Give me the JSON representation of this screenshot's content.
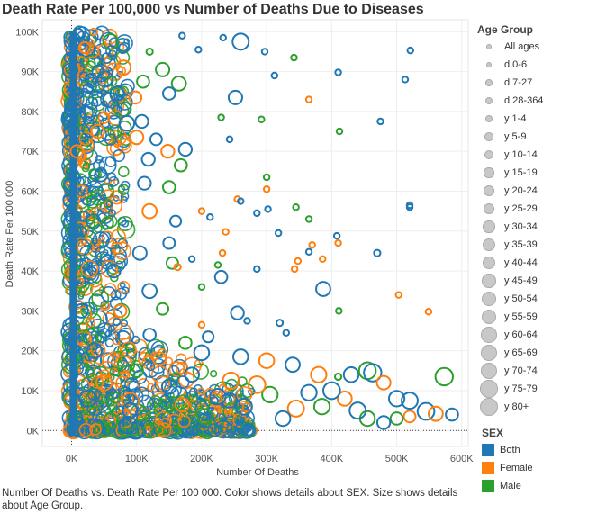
{
  "chart_data": {
    "type": "scatter",
    "title": "Death Rate Per 100,000 vs Number of Deaths Due to Diseases",
    "xlabel": "Number Of Deaths",
    "ylabel": "Death Rate Per 100 000",
    "xlim": [
      -45000,
      610000
    ],
    "ylim": [
      -4000,
      103000
    ],
    "x_ticks": [
      0,
      100000,
      200000,
      300000,
      400000,
      500000,
      600000
    ],
    "x_tick_labels": [
      "0K",
      "100K",
      "200K",
      "300K",
      "400K",
      "500K",
      "600K"
    ],
    "y_ticks": [
      0,
      10000,
      20000,
      30000,
      40000,
      50000,
      60000,
      70000,
      80000,
      90000,
      100000
    ],
    "y_tick_labels": [
      "0K",
      "10K",
      "20K",
      "30K",
      "40K",
      "50K",
      "60K",
      "70K",
      "80K",
      "90K",
      "100K"
    ],
    "grid": true,
    "colors": {
      "Both": "#1f77b4",
      "Female": "#ff7f0e",
      "Male": "#2ca02c"
    },
    "size_legend": {
      "title": "Age Group",
      "entries": [
        "All ages",
        "d 0-6",
        "d 7-27",
        "d 28-364",
        "y 1-4",
        "y 5-9",
        "y 10-14",
        "y 15-19",
        "y 20-24",
        "y 25-29",
        "y 30-34",
        "y 35-39",
        "y 40-44",
        "y 45-49",
        "y 50-54",
        "y 55-59",
        "y 60-64",
        "y 65-69",
        "y 70-74",
        "y 75-79",
        "y 80+"
      ]
    },
    "color_legend": {
      "title": "SEX",
      "entries": [
        "Both",
        "Female",
        "Male"
      ]
    },
    "points": [
      {
        "x": 521000,
        "y": 95300,
        "sex": "Both",
        "age": "d 7-27"
      },
      {
        "x": 513000,
        "y": 88000,
        "sex": "Both",
        "age": "d 7-27"
      },
      {
        "x": 410000,
        "y": 89800,
        "sex": "Both",
        "age": "d 7-27"
      },
      {
        "x": 475000,
        "y": 77500,
        "sex": "Both",
        "age": "d 7-27"
      },
      {
        "x": 342000,
        "y": 93500,
        "sex": "Male",
        "age": "d 7-27"
      },
      {
        "x": 260000,
        "y": 97500,
        "sex": "Both",
        "age": "y 70-74"
      },
      {
        "x": 233000,
        "y": 98500,
        "sex": "Both",
        "age": "d 7-27"
      },
      {
        "x": 297000,
        "y": 95000,
        "sex": "Both",
        "age": "d 7-27"
      },
      {
        "x": 312000,
        "y": 89000,
        "sex": "Both",
        "age": "d 7-27"
      },
      {
        "x": 365000,
        "y": 83000,
        "sex": "Female",
        "age": "d 7-27"
      },
      {
        "x": 412000,
        "y": 75000,
        "sex": "Male",
        "age": "d 7-27"
      },
      {
        "x": 292000,
        "y": 78000,
        "sex": "Male",
        "age": "d 7-27"
      },
      {
        "x": 252000,
        "y": 83500,
        "sex": "Both",
        "age": "y 50-54"
      },
      {
        "x": 165000,
        "y": 87000,
        "sex": "Male",
        "age": "y 55-59"
      },
      {
        "x": 175000,
        "y": 70500,
        "sex": "Both",
        "age": "y 45-49"
      },
      {
        "x": 168000,
        "y": 66500,
        "sex": "Male",
        "age": "y 40-44"
      },
      {
        "x": 140000,
        "y": 90500,
        "sex": "Male",
        "age": "y 50-54"
      },
      {
        "x": 150000,
        "y": 84500,
        "sex": "Both",
        "age": "y 40-44"
      },
      {
        "x": 170000,
        "y": 99000,
        "sex": "Both",
        "age": "d 7-27"
      },
      {
        "x": 195000,
        "y": 95500,
        "sex": "Both",
        "age": "d 7-27"
      },
      {
        "x": 230000,
        "y": 78500,
        "sex": "Male",
        "age": "d 7-27"
      },
      {
        "x": 243000,
        "y": 73000,
        "sex": "Both",
        "age": "d 7-27"
      },
      {
        "x": 520000,
        "y": 56500,
        "sex": "Both",
        "age": "d 7-27"
      },
      {
        "x": 520000,
        "y": 56000,
        "sex": "Both",
        "age": "d 7-27"
      },
      {
        "x": 470000,
        "y": 44500,
        "sex": "Both",
        "age": "d 28-364"
      },
      {
        "x": 503000,
        "y": 34000,
        "sex": "Female",
        "age": "d 7-27"
      },
      {
        "x": 549000,
        "y": 29800,
        "sex": "Female",
        "age": "d 7-27"
      },
      {
        "x": 411000,
        "y": 30000,
        "sex": "Male",
        "age": "d 7-27"
      },
      {
        "x": 387000,
        "y": 35500,
        "sex": "Both",
        "age": "y 55-59"
      },
      {
        "x": 408000,
        "y": 48800,
        "sex": "Both",
        "age": "d 7-27"
      },
      {
        "x": 410000,
        "y": 47000,
        "sex": "Female",
        "age": "d 7-27"
      },
      {
        "x": 386000,
        "y": 43000,
        "sex": "Female",
        "age": "d 7-27"
      },
      {
        "x": 370000,
        "y": 46500,
        "sex": "Female",
        "age": "d 7-27"
      },
      {
        "x": 365000,
        "y": 53000,
        "sex": "Male",
        "age": "d 7-27"
      },
      {
        "x": 345000,
        "y": 56000,
        "sex": "Male",
        "age": "d 7-27"
      },
      {
        "x": 300000,
        "y": 63500,
        "sex": "Male",
        "age": "d 7-27"
      },
      {
        "x": 300000,
        "y": 60500,
        "sex": "Female",
        "age": "d 7-27"
      },
      {
        "x": 255000,
        "y": 58000,
        "sex": "Female",
        "age": "d 7-27"
      },
      {
        "x": 260000,
        "y": 57500,
        "sex": "Both",
        "age": "d 7-27"
      },
      {
        "x": 285000,
        "y": 54500,
        "sex": "Both",
        "age": "d 7-27"
      },
      {
        "x": 302000,
        "y": 55500,
        "sex": "Both",
        "age": "d 7-27"
      },
      {
        "x": 318000,
        "y": 49500,
        "sex": "Both",
        "age": "d 7-27"
      },
      {
        "x": 343000,
        "y": 40500,
        "sex": "Female",
        "age": "d 7-27"
      },
      {
        "x": 348000,
        "y": 42500,
        "sex": "Female",
        "age": "d 7-27"
      },
      {
        "x": 365000,
        "y": 44800,
        "sex": "Both",
        "age": "d 7-27"
      },
      {
        "x": 285000,
        "y": 40500,
        "sex": "Both",
        "age": "d 7-27"
      },
      {
        "x": 237000,
        "y": 49800,
        "sex": "Female",
        "age": "d 7-27"
      },
      {
        "x": 225000,
        "y": 41500,
        "sex": "Male",
        "age": "d 7-27"
      },
      {
        "x": 230000,
        "y": 38500,
        "sex": "Both",
        "age": "y 40-44"
      },
      {
        "x": 232000,
        "y": 44500,
        "sex": "Female",
        "age": "d 7-27"
      },
      {
        "x": 255000,
        "y": 29500,
        "sex": "Both",
        "age": "y 45-49"
      },
      {
        "x": 270000,
        "y": 27500,
        "sex": "Both",
        "age": "d 7-27"
      },
      {
        "x": 320000,
        "y": 27000,
        "sex": "Both",
        "age": "d 28-364"
      },
      {
        "x": 330000,
        "y": 24500,
        "sex": "Both",
        "age": "d 7-27"
      },
      {
        "x": 210000,
        "y": 23500,
        "sex": "Both",
        "age": "y 30-34"
      },
      {
        "x": 200000,
        "y": 26500,
        "sex": "Female",
        "age": "d 7-27"
      },
      {
        "x": 200000,
        "y": 36000,
        "sex": "Male",
        "age": "d 7-27"
      },
      {
        "x": 213000,
        "y": 53500,
        "sex": "Both",
        "age": "d 7-27"
      },
      {
        "x": 200000,
        "y": 55000,
        "sex": "Female",
        "age": "d 7-27"
      },
      {
        "x": 160000,
        "y": 52500,
        "sex": "Both",
        "age": "y 30-34"
      },
      {
        "x": 150000,
        "y": 47000,
        "sex": "Both",
        "age": "y 35-39"
      },
      {
        "x": 155000,
        "y": 42000,
        "sex": "Male",
        "age": "y 35-39"
      },
      {
        "x": 163000,
        "y": 41000,
        "sex": "Female",
        "age": "d 28-364"
      },
      {
        "x": 185000,
        "y": 43000,
        "sex": "Both",
        "age": "d 7-27"
      },
      {
        "x": 150000,
        "y": 61000,
        "sex": "Male",
        "age": "y 40-44"
      },
      {
        "x": 148000,
        "y": 70000,
        "sex": "Female",
        "age": "y 45-49"
      },
      {
        "x": 112000,
        "y": 62000,
        "sex": "Both",
        "age": "y 45-49"
      },
      {
        "x": 118000,
        "y": 68000,
        "sex": "Both",
        "age": "y 45-49"
      },
      {
        "x": 108000,
        "y": 77500,
        "sex": "Both",
        "age": "y 45-49"
      },
      {
        "x": 100000,
        "y": 73500,
        "sex": "Female",
        "age": "y 50-54"
      },
      {
        "x": 98000,
        "y": 83500,
        "sex": "Female",
        "age": "y 40-44"
      },
      {
        "x": 110000,
        "y": 87500,
        "sex": "Male",
        "age": "y 40-44"
      },
      {
        "x": 120000,
        "y": 95000,
        "sex": "Male",
        "age": "d 28-364"
      },
      {
        "x": 60000,
        "y": 97500,
        "sex": "Male",
        "age": "y 60-64"
      },
      {
        "x": 80000,
        "y": 91000,
        "sex": "Female",
        "age": "y 55-59"
      },
      {
        "x": 70000,
        "y": 84500,
        "sex": "Both",
        "age": "y 50-54"
      },
      {
        "x": 85000,
        "y": 77000,
        "sex": "Both",
        "age": "y 60-64"
      },
      {
        "x": 130000,
        "y": 73000,
        "sex": "Both",
        "age": "y 35-39"
      },
      {
        "x": 120000,
        "y": 55000,
        "sex": "Female",
        "age": "y 55-59"
      },
      {
        "x": 105000,
        "y": 44500,
        "sex": "Both",
        "age": "y 50-54"
      },
      {
        "x": 120000,
        "y": 35000,
        "sex": "Both",
        "age": "y 55-59"
      },
      {
        "x": 140000,
        "y": 30500,
        "sex": "Male",
        "age": "y 35-39"
      },
      {
        "x": 175000,
        "y": 22000,
        "sex": "Male",
        "age": "y 40-44"
      },
      {
        "x": 200000,
        "y": 19500,
        "sex": "Both",
        "age": "y 60-64"
      },
      {
        "x": 260000,
        "y": 18500,
        "sex": "Both",
        "age": "y 60-64"
      },
      {
        "x": 300000,
        "y": 17500,
        "sex": "Female",
        "age": "y 60-64"
      },
      {
        "x": 340000,
        "y": 16500,
        "sex": "Both",
        "age": "y 55-59"
      },
      {
        "x": 380000,
        "y": 14000,
        "sex": "Female",
        "age": "y 65-69"
      },
      {
        "x": 410000,
        "y": 13500,
        "sex": "Male",
        "age": "d 28-364"
      },
      {
        "x": 430000,
        "y": 14000,
        "sex": "Both",
        "age": "y 60-64"
      },
      {
        "x": 455000,
        "y": 15000,
        "sex": "Male",
        "age": "y 75-79"
      },
      {
        "x": 463000,
        "y": 14500,
        "sex": "Both",
        "age": "y 80+"
      },
      {
        "x": 480000,
        "y": 12000,
        "sex": "Female",
        "age": "y 50-54"
      },
      {
        "x": 500000,
        "y": 8000,
        "sex": "Both",
        "age": "y 65-69"
      },
      {
        "x": 520000,
        "y": 7500,
        "sex": "Both",
        "age": "y 70-74"
      },
      {
        "x": 545000,
        "y": 4800,
        "sex": "Both",
        "age": "y 75-79"
      },
      {
        "x": 560000,
        "y": 4200,
        "sex": "Female",
        "age": "y 55-59"
      },
      {
        "x": 573000,
        "y": 13500,
        "sex": "Male",
        "age": "y 80+"
      },
      {
        "x": 585000,
        "y": 4000,
        "sex": "Both",
        "age": "y 40-44"
      },
      {
        "x": 520000,
        "y": 3500,
        "sex": "Female",
        "age": "y 35-39"
      },
      {
        "x": 500000,
        "y": 3000,
        "sex": "Male",
        "age": "y 40-44"
      },
      {
        "x": 480000,
        "y": 2000,
        "sex": "Both",
        "age": "y 45-49"
      },
      {
        "x": 455000,
        "y": 3000,
        "sex": "Male",
        "age": "y 60-64"
      },
      {
        "x": 440000,
        "y": 5000,
        "sex": "Both",
        "age": "y 70-74"
      },
      {
        "x": 420000,
        "y": 8000,
        "sex": "Female",
        "age": "y 55-59"
      },
      {
        "x": 400000,
        "y": 10000,
        "sex": "Both",
        "age": "y 75-79"
      },
      {
        "x": 385000,
        "y": 6000,
        "sex": "Male",
        "age": "y 65-69"
      },
      {
        "x": 365000,
        "y": 9500,
        "sex": "Both",
        "age": "y 65-69"
      },
      {
        "x": 345000,
        "y": 5500,
        "sex": "Female",
        "age": "y 70-74"
      },
      {
        "x": 325000,
        "y": 3000,
        "sex": "Both",
        "age": "y 60-64"
      },
      {
        "x": 305000,
        "y": 9000,
        "sex": "Male",
        "age": "y 65-69"
      },
      {
        "x": 285000,
        "y": 11500,
        "sex": "Female",
        "age": "y 75-79"
      },
      {
        "x": 265000,
        "y": 6000,
        "sex": "Both",
        "age": "y 70-74"
      },
      {
        "x": 245000,
        "y": 12500,
        "sex": "Female",
        "age": "y 70-74"
      },
      {
        "x": 225000,
        "y": 8500,
        "sex": "Both",
        "age": "y 65-69"
      },
      {
        "x": 205000,
        "y": 3500,
        "sex": "Male",
        "age": "y 60-64"
      },
      {
        "x": 185000,
        "y": 14000,
        "sex": "Both",
        "age": "y 55-59"
      },
      {
        "x": 170000,
        "y": 6500,
        "sex": "Female",
        "age": "y 50-54"
      },
      {
        "x": 150000,
        "y": 11000,
        "sex": "Both",
        "age": "y 55-59"
      },
      {
        "x": 135000,
        "y": 18000,
        "sex": "Female",
        "age": "y 45-49"
      },
      {
        "x": 120000,
        "y": 24000,
        "sex": "Both",
        "age": "y 40-44"
      },
      {
        "x": 100000,
        "y": 15000,
        "sex": "Male",
        "age": "y 45-49"
      },
      {
        "x": 90000,
        "y": 5000,
        "sex": "Both",
        "age": "y 60-64"
      },
      {
        "x": 75000,
        "y": 30000,
        "sex": "Female",
        "age": "y 40-44"
      },
      {
        "x": 65000,
        "y": 40000,
        "sex": "Both",
        "age": "y 45-49"
      },
      {
        "x": 55000,
        "y": 52000,
        "sex": "Male",
        "age": "y 35-39"
      },
      {
        "x": 45000,
        "y": 64000,
        "sex": "Both",
        "age": "y 40-44"
      },
      {
        "x": 40000,
        "y": 75000,
        "sex": "Female",
        "age": "y 45-49"
      },
      {
        "x": 30000,
        "y": 88000,
        "sex": "Both",
        "age": "y 35-39"
      },
      {
        "x": 20000,
        "y": 96000,
        "sex": "Female",
        "age": "y 30-34"
      },
      {
        "x": 10000,
        "y": 99500,
        "sex": "Both",
        "age": "y 25-29"
      },
      {
        "x": 35000,
        "y": 20000,
        "sex": "Both",
        "age": "y 60-64"
      },
      {
        "x": 50000,
        "y": 12000,
        "sex": "Female",
        "age": "y 65-69"
      },
      {
        "x": 25000,
        "y": 8000,
        "sex": "Both",
        "age": "y 70-74"
      },
      {
        "x": 60000,
        "y": 2500,
        "sex": "Male",
        "age": "y 55-59"
      },
      {
        "x": 15000,
        "y": 30000,
        "sex": "Both",
        "age": "y 50-54"
      },
      {
        "x": 5000,
        "y": 50000,
        "sex": "Both",
        "age": "y 45-49"
      },
      {
        "x": 8000,
        "y": 70000,
        "sex": "Female",
        "age": "y 40-44"
      },
      {
        "x": 3000,
        "y": 85000,
        "sex": "Both",
        "age": "y 35-39"
      }
    ]
  },
  "caption": "Number Of Deaths vs. Death Rate Per 100 000.  Color shows details about SEX.  Size shows details about Age Group."
}
